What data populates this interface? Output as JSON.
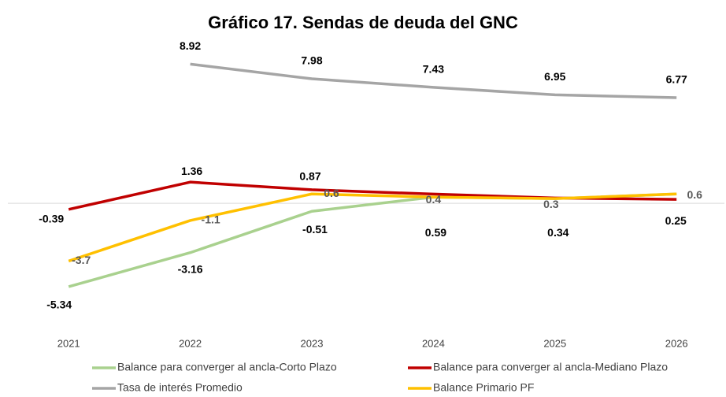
{
  "chart_data": {
    "type": "line",
    "title": "Gráfico 17. Sendas de deuda del GNC",
    "categories": [
      "2021",
      "2022",
      "2023",
      "2024",
      "2025",
      "2026"
    ],
    "ylim": [
      -6,
      10
    ],
    "series": [
      {
        "name": "Balance para converger al ancla-Corto Plazo",
        "color": "#a9d18e",
        "values": [
          -5.34,
          -3.16,
          -0.51,
          0.4,
          0.3,
          0.6
        ],
        "value_labels": [
          "-5.34",
          "-3.16",
          "-0.51",
          null,
          null,
          null
        ]
      },
      {
        "name": "Balance para converger al ancla-Mediano Plazo",
        "color": "#c00000",
        "values": [
          -0.39,
          1.36,
          0.87,
          0.59,
          0.34,
          0.25
        ]
      },
      {
        "name": "Tasa de interés Promedio",
        "color": "#a5a5a5",
        "values": [
          null,
          8.92,
          7.98,
          7.43,
          6.95,
          6.77
        ]
      },
      {
        "name": "Balance Primario PF",
        "color": "#ffc000",
        "values": [
          -3.7,
          -1.1,
          0.6,
          0.4,
          0.3,
          0.6
        ]
      }
    ]
  }
}
